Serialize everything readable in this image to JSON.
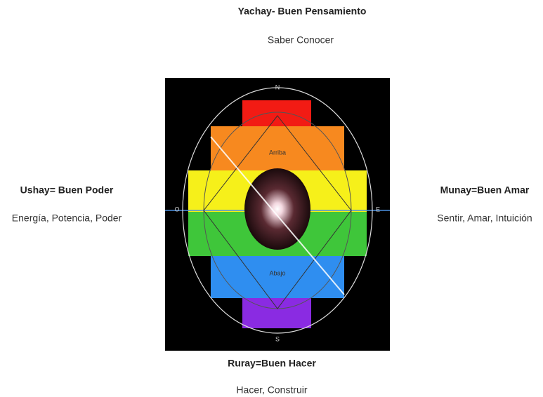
{
  "top": {
    "title": "Yachay- Buen Pensamiento",
    "subtitle": "Saber Conocer"
  },
  "left": {
    "title": "Ushay= Buen Poder",
    "subtitle": "Energía, Potencia, Poder"
  },
  "right": {
    "title": "Munay=Buen Amar",
    "subtitle": "Sentir, Amar, Intuición"
  },
  "bottom": {
    "title": "Ruray=Buen Hacer",
    "subtitle": "Hacer, Construir"
  },
  "image": {
    "north": "N",
    "south": "S",
    "west": "O",
    "east": "E",
    "upper": "Arriba",
    "lower": "Abajo"
  }
}
